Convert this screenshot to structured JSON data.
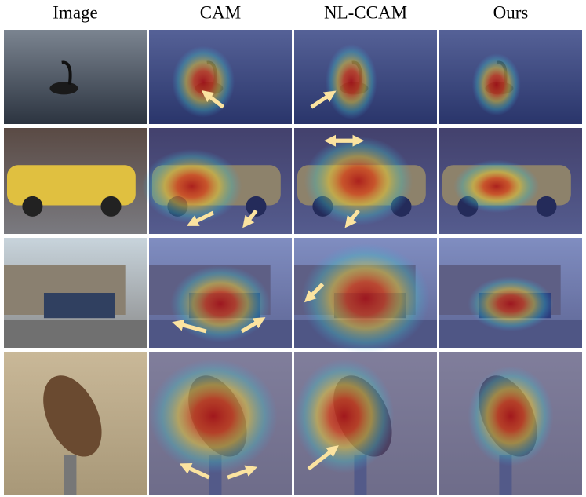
{
  "header": {
    "columns": [
      "Image",
      "CAM",
      "NL-CCAM",
      "Ours"
    ]
  }
}
